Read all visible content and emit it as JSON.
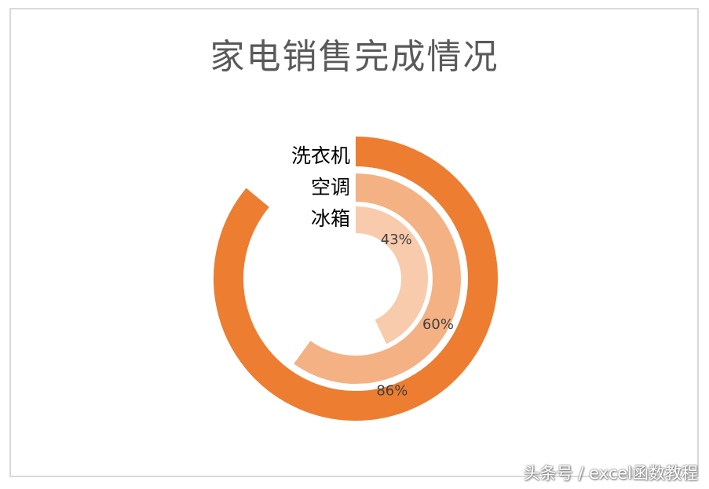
{
  "chart_data": {
    "type": "radial-bar",
    "title": "家电销售完成情况",
    "categories": [
      "洗衣机",
      "空调",
      "冰箱"
    ],
    "values": [
      0.86,
      0.6,
      0.43
    ],
    "value_labels": [
      "86%",
      "60%",
      "43%"
    ],
    "colors": [
      "#ED7D31",
      "#F4B183",
      "#F8CBAD"
    ]
  },
  "watermark": "头条号 / excel函数教程"
}
